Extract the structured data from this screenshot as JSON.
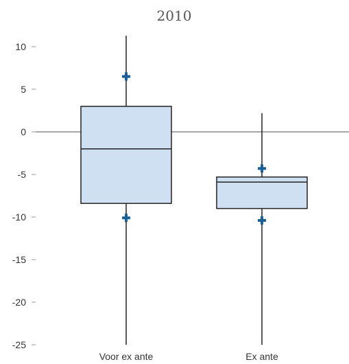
{
  "chart_data": {
    "type": "box",
    "title": "2010",
    "xlabel": "",
    "ylabel": "",
    "ylim": [
      -25,
      12
    ],
    "yticks": [
      10,
      5,
      0,
      -5,
      -10,
      -15,
      -20,
      -25
    ],
    "reference_line_y": 0,
    "grid": false,
    "categories": [
      "Voor ex ante",
      "Ex ante"
    ],
    "boxes": [
      {
        "category": "Voor ex ante",
        "whisker_low": -25,
        "q1": -8.4,
        "median": -2.0,
        "q3": 3.0,
        "whisker_high": 11.3,
        "markers": [
          6.5,
          -10.1
        ]
      },
      {
        "category": "Ex ante",
        "whisker_low": -25,
        "q1": -9.0,
        "median": -5.9,
        "q3": -5.3,
        "whisker_high": 2.2,
        "markers": [
          -4.3,
          -10.4
        ]
      }
    ],
    "colors": {
      "box_fill": "#cfe0f3",
      "box_stroke": "#222222",
      "whisker": "#222222",
      "marker": "#1a5f96",
      "reference_line": "#8a8a8a",
      "axis_tick": "#999999"
    }
  }
}
